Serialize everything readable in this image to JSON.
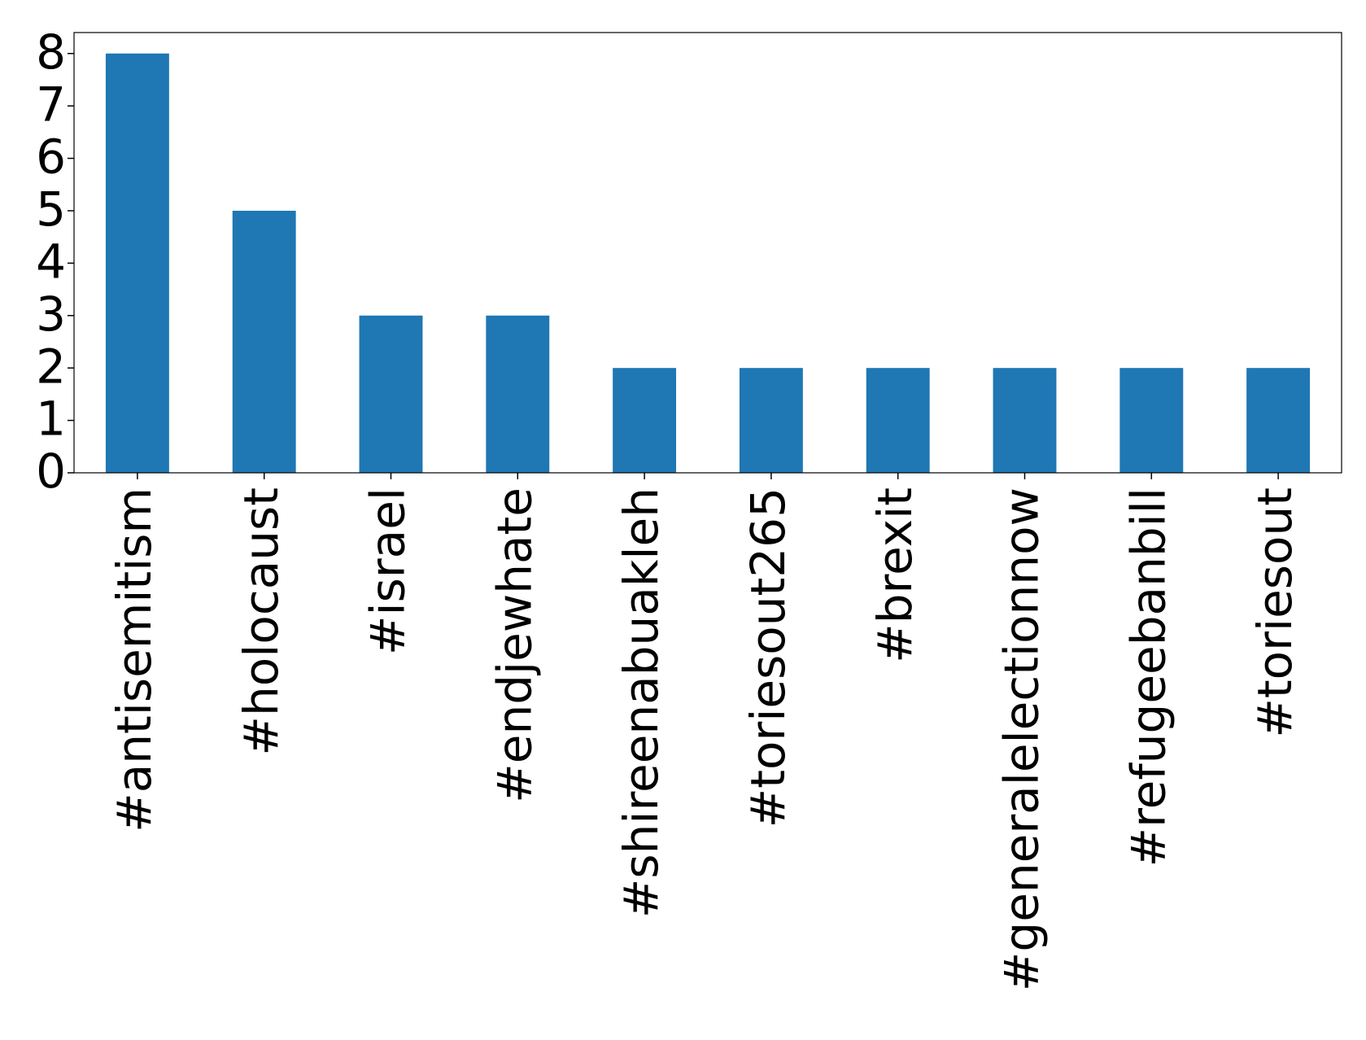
{
  "chart_data": {
    "type": "bar",
    "categories": [
      "#antisemitism",
      "#holocaust",
      "#israel",
      "#endjewhate",
      "#shireenabuakleh",
      "#toriesout265",
      "#brexit",
      "#generalelectionnow",
      "#refugeebanbill",
      "#toriesout"
    ],
    "values": [
      8,
      5,
      3,
      3,
      2,
      2,
      2,
      2,
      2,
      2
    ],
    "color": "#1f77b4",
    "ylim": [
      0,
      8.4
    ],
    "yticks": [
      0,
      1,
      2,
      3,
      4,
      5,
      6,
      7,
      8
    ],
    "grid": false
  }
}
